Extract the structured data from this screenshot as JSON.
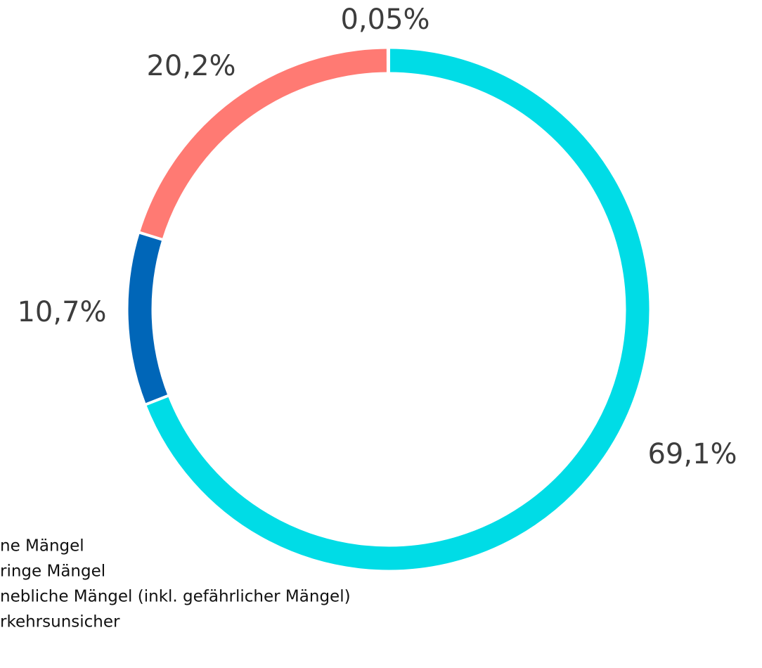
{
  "chart_data": {
    "type": "donut",
    "categories": [
      "ne Mängel",
      "ringe Mängel",
      "nebliche Mängel (inkl. gefährlicher Mängel)",
      "rkehrsunsicher"
    ],
    "values": [
      69.1,
      10.7,
      20.2,
      0.05
    ],
    "value_labels": [
      "69,1%",
      "10,7%",
      "20,2%",
      "0,05%"
    ],
    "colors": [
      "#00dce6",
      "#0066b8",
      "#ff7a73",
      "#333333"
    ]
  }
}
